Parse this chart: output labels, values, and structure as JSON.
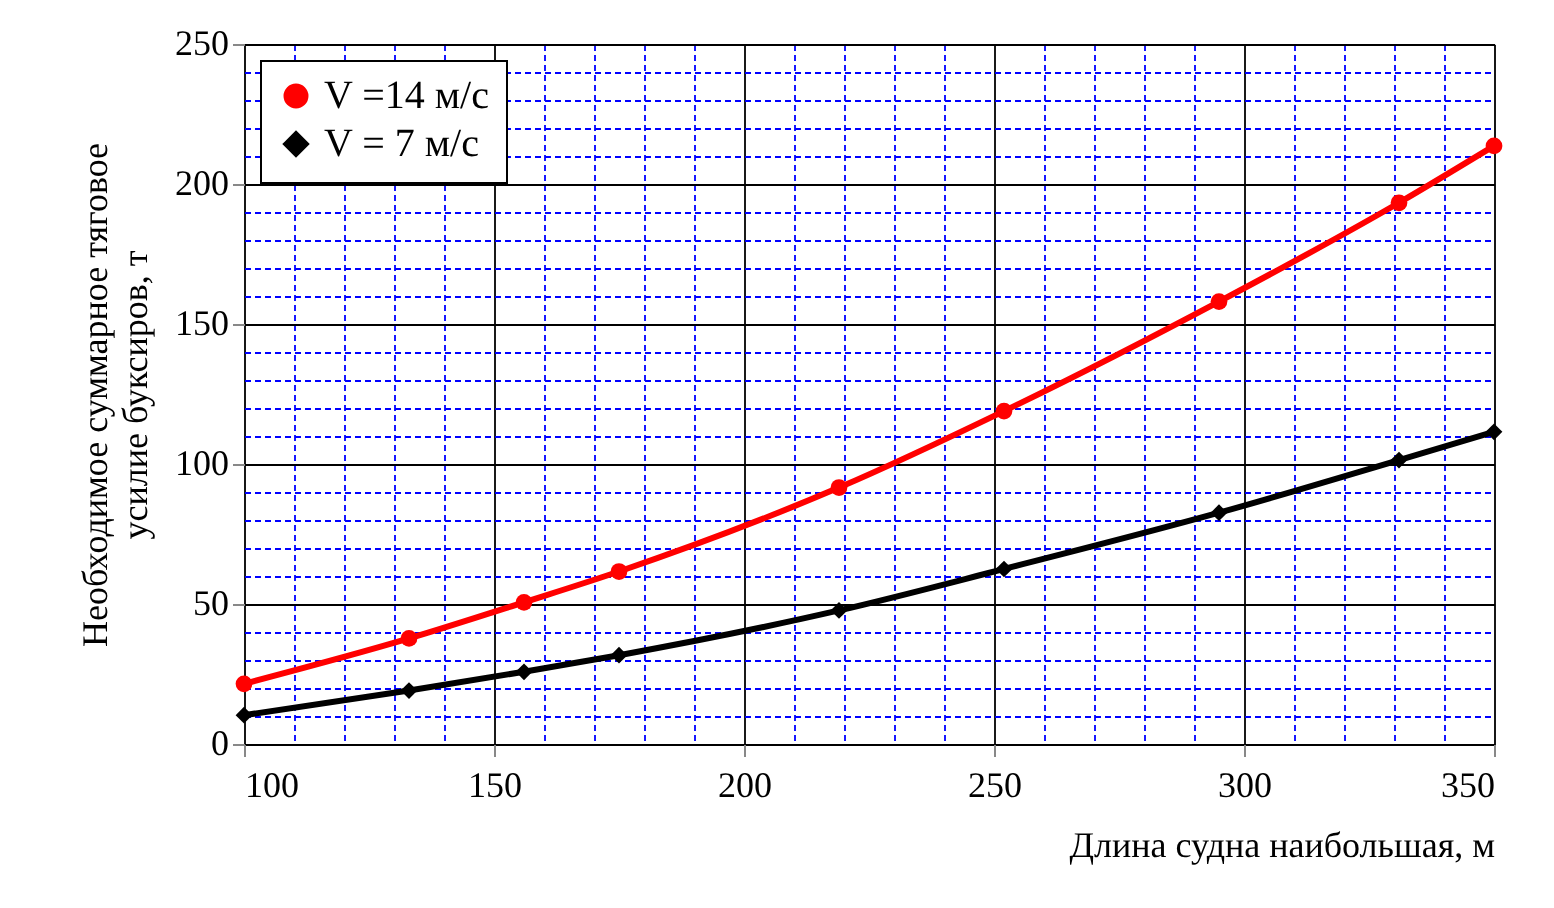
{
  "chart_data": {
    "type": "line",
    "xlabel": "Длина судна наибольшая, м",
    "ylabel": "Необходимое суммарное тяговое\nусилие буксиров, т",
    "xlim": [
      100,
      350
    ],
    "ylim": [
      0,
      250
    ],
    "xticks": [
      100,
      {
        "value": 110,
        "label": null
      },
      {
        "value": 120,
        "label": null
      },
      {
        "value": 130,
        "label": null
      },
      {
        "value": 140,
        "label": null
      },
      150,
      {
        "value": 160,
        "label": null
      },
      {
        "value": 170,
        "label": null
      },
      {
        "value": 180,
        "label": null
      },
      {
        "value": 190,
        "label": null
      },
      200,
      {
        "value": 210,
        "label": null
      },
      {
        "value": 220,
        "label": null
      },
      {
        "value": 230,
        "label": null
      },
      {
        "value": 240,
        "label": null
      },
      250,
      {
        "value": 260,
        "label": null
      },
      {
        "value": 270,
        "label": null
      },
      {
        "value": 280,
        "label": null
      },
      {
        "value": 290,
        "label": null
      },
      300,
      {
        "value": 310,
        "label": null
      },
      {
        "value": 320,
        "label": null
      },
      {
        "value": 330,
        "label": null
      },
      {
        "value": 340,
        "label": null
      },
      350
    ],
    "yticks": [
      0,
      {
        "value": 10,
        "label": null
      },
      {
        "value": 20,
        "label": null
      },
      {
        "value": 30,
        "label": null
      },
      {
        "value": 40,
        "label": null
      },
      50,
      {
        "value": 60,
        "label": null
      },
      {
        "value": 70,
        "label": null
      },
      {
        "value": 80,
        "label": null
      },
      {
        "value": 90,
        "label": null
      },
      100,
      {
        "value": 110,
        "label": null
      },
      {
        "value": 120,
        "label": null
      },
      {
        "value": 130,
        "label": null
      },
      {
        "value": 140,
        "label": null
      },
      150,
      {
        "value": 160,
        "label": null
      },
      {
        "value": 170,
        "label": null
      },
      {
        "value": 180,
        "label": null
      },
      {
        "value": 190,
        "label": null
      },
      200,
      {
        "value": 210,
        "label": null
      },
      {
        "value": 220,
        "label": null
      },
      {
        "value": 230,
        "label": null
      },
      {
        "value": 240,
        "label": null
      },
      250
    ],
    "grid": true,
    "legend": "top left",
    "series": [
      {
        "name": "V =14 м/с",
        "color": "#ff0000",
        "marker": "circle",
        "x": [
          100,
          133,
          156,
          175,
          219,
          252,
          295,
          331,
          350
        ],
        "values": [
          21.5,
          37.7,
          50.6,
          61.6,
          91.6,
          118.9,
          158,
          193.3,
          213.6
        ]
      },
      {
        "name": "V = 7 м/с",
        "color": "#000000",
        "marker": "diamond",
        "x": [
          100,
          133,
          156,
          175,
          219,
          252,
          295,
          331,
          350
        ],
        "values": [
          10.3,
          19.1,
          25.8,
          31.7,
          47.7,
          62.5,
          82.6,
          101.4,
          111.5
        ]
      }
    ]
  }
}
